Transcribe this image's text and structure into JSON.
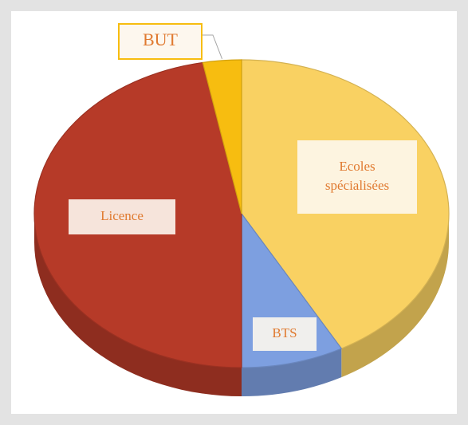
{
  "chart_data": {
    "type": "pie3d",
    "categories": [
      "Ecoles spécialisées",
      "BTS",
      "Licence",
      "BUT"
    ],
    "values": [
      42,
      8,
      47,
      3
    ],
    "colors": [
      "#f9d162",
      "#7d9fe0",
      "#b63a28",
      "#f7bd10"
    ]
  }
}
